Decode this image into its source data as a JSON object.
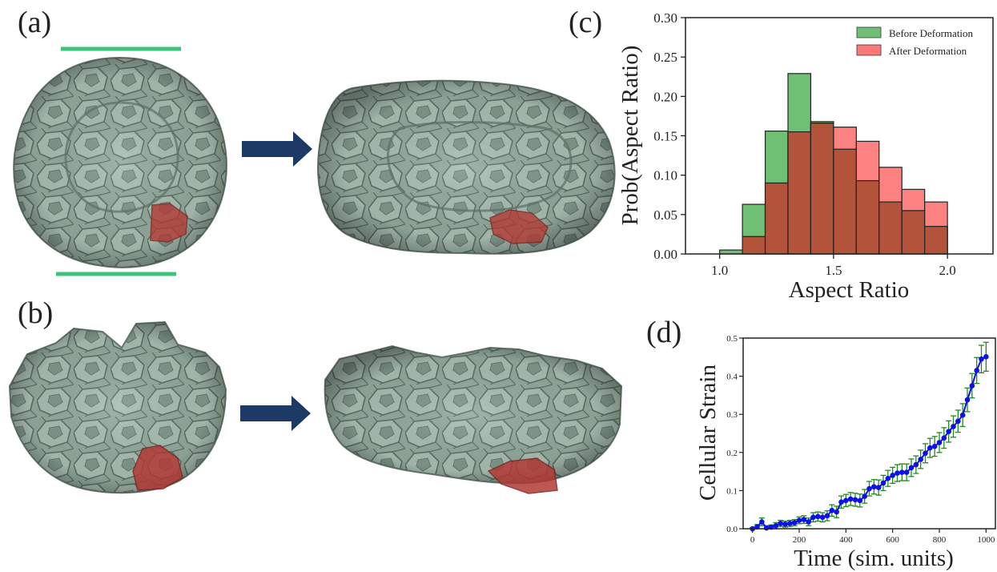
{
  "panels": {
    "a_label": "(a)",
    "b_label": "(b)",
    "c_label": "(c)",
    "d_label": "(d)"
  },
  "illustration": {
    "cell_color": "#8fa699",
    "cell_edge_color": "#5c6d64",
    "highlight_cell_color": "#b23a35",
    "arrow_color": "#1d3a66",
    "plate_color": "#3cc47c"
  },
  "chart_data": [
    {
      "panel": "c",
      "type": "bar",
      "xlabel": "Aspect Ratio",
      "ylabel": "Prob(Aspect Ratio)",
      "xlim": [
        0.85,
        2.2
      ],
      "ylim": [
        0,
        0.3
      ],
      "xticks": [
        1.0,
        1.5,
        2.0
      ],
      "yticks": [
        0.0,
        0.05,
        0.1,
        0.15,
        0.2,
        0.25,
        0.3
      ],
      "bin_edges": [
        1.0,
        1.1,
        1.2,
        1.3,
        1.4,
        1.5,
        1.6,
        1.7,
        1.8,
        1.9,
        2.0
      ],
      "legend_position": "top-right",
      "series": [
        {
          "name": "Before Deformation",
          "color": "#5fb865",
          "values": [
            0.005,
            0.063,
            0.156,
            0.229,
            0.168,
            0.133,
            0.093,
            0.066,
            0.055,
            0.035
          ]
        },
        {
          "name": "After Deformation",
          "color": "#fb6b6b",
          "values": [
            0.0,
            0.022,
            0.09,
            0.155,
            0.166,
            0.161,
            0.143,
            0.11,
            0.082,
            0.066
          ]
        }
      ]
    },
    {
      "panel": "d",
      "type": "line",
      "xlabel": "Time (sim. units)",
      "ylabel": "Cellular Strain",
      "xlim": [
        -40,
        1040
      ],
      "ylim": [
        0,
        0.5
      ],
      "xticks": [
        0,
        200,
        400,
        600,
        800,
        1000
      ],
      "yticks": [
        0.0,
        0.1,
        0.2,
        0.3,
        0.4,
        0.5
      ],
      "line_color": "#0d10e8",
      "error_color": "#1f8a1f",
      "series": [
        {
          "name": "",
          "x": [
            0,
            20,
            40,
            60,
            80,
            100,
            120,
            140,
            160,
            180,
            200,
            220,
            240,
            260,
            280,
            300,
            320,
            340,
            360,
            380,
            400,
            420,
            440,
            460,
            480,
            500,
            520,
            540,
            560,
            580,
            600,
            620,
            640,
            660,
            680,
            700,
            720,
            740,
            760,
            780,
            800,
            820,
            840,
            860,
            880,
            900,
            920,
            940,
            960,
            980,
            1000
          ],
          "y": [
            0.0,
            0.005,
            0.018,
            0.002,
            0.004,
            0.008,
            0.014,
            0.012,
            0.014,
            0.016,
            0.022,
            0.024,
            0.018,
            0.03,
            0.032,
            0.03,
            0.034,
            0.048,
            0.044,
            0.07,
            0.074,
            0.078,
            0.076,
            0.074,
            0.085,
            0.105,
            0.11,
            0.108,
            0.12,
            0.132,
            0.14,
            0.146,
            0.148,
            0.148,
            0.16,
            0.168,
            0.182,
            0.198,
            0.212,
            0.216,
            0.226,
            0.238,
            0.255,
            0.268,
            0.282,
            0.298,
            0.338,
            0.375,
            0.415,
            0.445,
            0.451
          ],
          "err": [
            0.003,
            0.006,
            0.01,
            0.006,
            0.006,
            0.008,
            0.008,
            0.008,
            0.008,
            0.008,
            0.009,
            0.01,
            0.01,
            0.012,
            0.012,
            0.012,
            0.013,
            0.015,
            0.015,
            0.016,
            0.016,
            0.017,
            0.017,
            0.017,
            0.018,
            0.019,
            0.019,
            0.02,
            0.02,
            0.021,
            0.021,
            0.022,
            0.022,
            0.022,
            0.023,
            0.023,
            0.024,
            0.025,
            0.025,
            0.026,
            0.026,
            0.027,
            0.028,
            0.028,
            0.029,
            0.03,
            0.031,
            0.032,
            0.034,
            0.036,
            0.038
          ]
        }
      ]
    }
  ]
}
